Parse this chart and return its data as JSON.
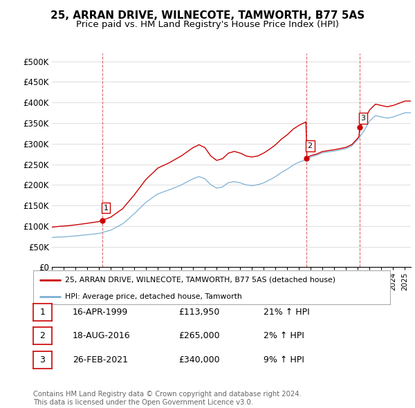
{
  "title": "25, ARRAN DRIVE, WILNECOTE, TAMWORTH, B77 5AS",
  "subtitle": "Price paid vs. HM Land Registry's House Price Index (HPI)",
  "title_fontsize": 11,
  "subtitle_fontsize": 9.5,
  "ylim": [
    0,
    520000
  ],
  "yticks": [
    0,
    50000,
    100000,
    150000,
    200000,
    250000,
    300000,
    350000,
    400000,
    450000,
    500000
  ],
  "ytick_labels": [
    "£0",
    "£50K",
    "£100K",
    "£150K",
    "£200K",
    "£250K",
    "£300K",
    "£350K",
    "£400K",
    "£450K",
    "£500K"
  ],
  "hpi_color": "#7bafd4",
  "price_color": "#cc0000",
  "dashed_color": "#cc0000",
  "background_color": "#ffffff",
  "grid_color": "#dddddd",
  "sale_points": [
    {
      "date_num": 1999.29,
      "price": 113950,
      "label": "1"
    },
    {
      "date_num": 2016.63,
      "price": 265000,
      "label": "2"
    },
    {
      "date_num": 2021.15,
      "price": 340000,
      "label": "3"
    }
  ],
  "sale_vlines": [
    1999.29,
    2016.63,
    2021.15
  ],
  "legend_entries": [
    {
      "label": "25, ARRAN DRIVE, WILNECOTE, TAMWORTH, B77 5AS (detached house)",
      "color": "#cc0000"
    },
    {
      "label": "HPI: Average price, detached house, Tamworth",
      "color": "#7bafd4"
    }
  ],
  "table_rows": [
    {
      "num": "1",
      "date": "16-APR-1999",
      "price": "£113,950",
      "change": "21% ↑ HPI"
    },
    {
      "num": "2",
      "date": "18-AUG-2016",
      "price": "£265,000",
      "change": "2% ↑ HPI"
    },
    {
      "num": "3",
      "date": "26-FEB-2021",
      "price": "£340,000",
      "change": "9% ↑ HPI"
    }
  ],
  "footer": "Contains HM Land Registry data © Crown copyright and database right 2024.\nThis data is licensed under the Open Government Licence v3.0.",
  "xmin": 1995.0,
  "xmax": 2025.5,
  "hpi_anchors": {
    "1995.0": 72000,
    "1996.0": 74000,
    "1997.0": 76000,
    "1998.0": 79000,
    "1999.0": 82000,
    "1999.5": 86000,
    "2000.0": 90000,
    "2001.0": 105000,
    "2002.0": 130000,
    "2003.0": 158000,
    "2004.0": 178000,
    "2005.0": 188000,
    "2006.0": 200000,
    "2007.0": 215000,
    "2007.5": 220000,
    "2008.0": 215000,
    "2008.5": 200000,
    "2009.0": 192000,
    "2009.5": 195000,
    "2010.0": 205000,
    "2010.5": 208000,
    "2011.0": 205000,
    "2011.5": 200000,
    "2012.0": 198000,
    "2012.5": 200000,
    "2013.0": 205000,
    "2013.5": 212000,
    "2014.0": 220000,
    "2014.5": 230000,
    "2015.0": 238000,
    "2015.5": 248000,
    "2016.0": 255000,
    "2016.5": 260000,
    "2017.0": 268000,
    "2017.5": 272000,
    "2018.0": 278000,
    "2018.5": 280000,
    "2019.0": 282000,
    "2019.5": 285000,
    "2020.0": 288000,
    "2020.5": 295000,
    "2021.0": 310000,
    "2021.5": 330000,
    "2022.0": 355000,
    "2022.5": 368000,
    "2023.0": 365000,
    "2023.5": 362000,
    "2024.0": 365000,
    "2024.5": 370000,
    "2025.0": 375000
  },
  "sale1_date": 1999.29,
  "sale1_price": 113950,
  "sale2_date": 2016.63,
  "sale2_price": 265000,
  "sale3_date": 2021.15,
  "sale3_price": 340000
}
